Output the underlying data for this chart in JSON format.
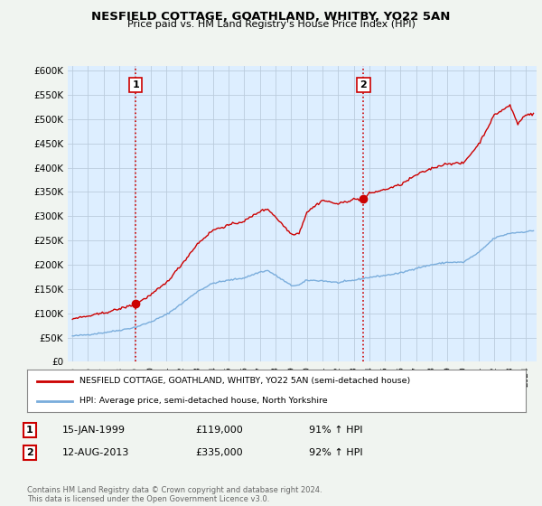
{
  "title": "NESFIELD COTTAGE, GOATHLAND, WHITBY, YO22 5AN",
  "subtitle": "Price paid vs. HM Land Registry's House Price Index (HPI)",
  "legend_line1": "NESFIELD COTTAGE, GOATHLAND, WHITBY, YO22 5AN (semi-detached house)",
  "legend_line2": "HPI: Average price, semi-detached house, North Yorkshire",
  "footnote": "Contains HM Land Registry data © Crown copyright and database right 2024.\nThis data is licensed under the Open Government Licence v3.0.",
  "sale1_label": "1",
  "sale1_date": "15-JAN-1999",
  "sale1_price": "£119,000",
  "sale1_hpi": "91% ↑ HPI",
  "sale1_year": 1999.04,
  "sale1_value": 119000,
  "sale2_label": "2",
  "sale2_date": "12-AUG-2013",
  "sale2_price": "£335,000",
  "sale2_hpi": "92% ↑ HPI",
  "sale2_year": 2013.62,
  "sale2_value": 335000,
  "ylim": [
    0,
    610000
  ],
  "yticks": [
    0,
    50000,
    100000,
    150000,
    200000,
    250000,
    300000,
    350000,
    400000,
    450000,
    500000,
    550000,
    600000
  ],
  "xlim_start": 1994.7,
  "xlim_end": 2024.7,
  "red_color": "#cc0000",
  "blue_color": "#7aaddc",
  "dashed_color": "#cc0000",
  "background_color": "#f0f4f0",
  "plot_bg": "#ddeeff",
  "grid_color": "#bbccdd"
}
